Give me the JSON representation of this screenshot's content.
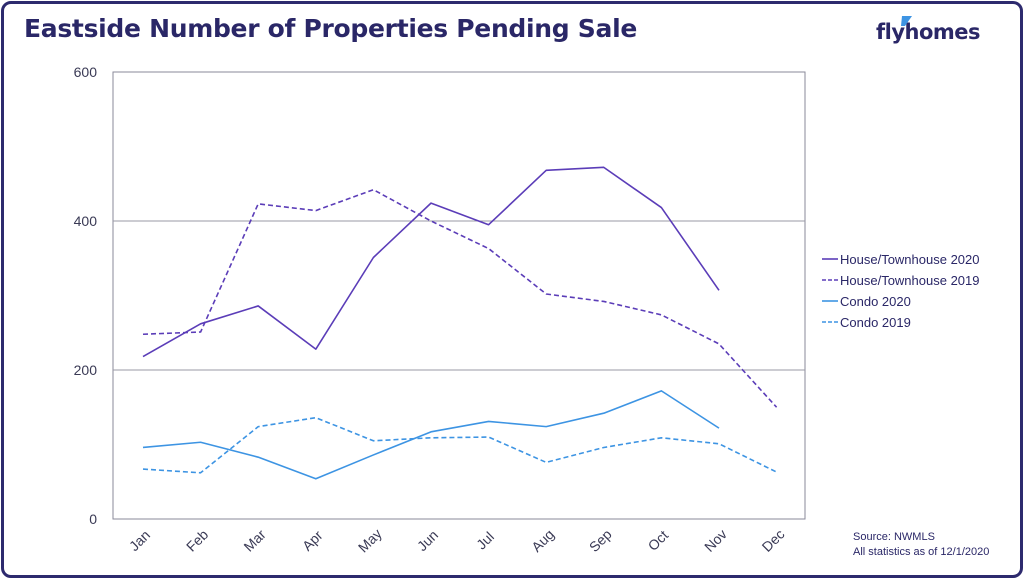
{
  "title": "Eastside Number of Properties Pending Sale",
  "brand": {
    "name": "flyhomes",
    "logo_icon": "flyhomes-logo-icon",
    "color": "#2a2767"
  },
  "source": {
    "line1": "Source: NWMLS",
    "line2": "All statistics as of 12/1/2020"
  },
  "chart_data": {
    "type": "line",
    "title": "Eastside Number of Properties Pending Sale",
    "xlabel": "",
    "ylabel": "",
    "categories": [
      "Jan",
      "Feb",
      "Mar",
      "Apr",
      "May",
      "Jun",
      "Jul",
      "Aug",
      "Sep",
      "Oct",
      "Nov",
      "Dec"
    ],
    "ylim": [
      0,
      600
    ],
    "yticks": [
      0,
      200,
      400,
      600
    ],
    "grid": "horizontal at 200 and 400",
    "legend_position": "right",
    "series": [
      {
        "name": "House/Townhouse 2020",
        "color": "#5b3db8",
        "dashed": false,
        "values": [
          218,
          262,
          286,
          228,
          351,
          424,
          395,
          468,
          472,
          418,
          307,
          null
        ]
      },
      {
        "name": "House/Townhouse 2019",
        "color": "#5b3db8",
        "dashed": true,
        "values": [
          248,
          251,
          423,
          414,
          442,
          400,
          363,
          302,
          292,
          274,
          235,
          150
        ]
      },
      {
        "name": "Condo 2020",
        "color": "#3d94e3",
        "dashed": false,
        "values": [
          96,
          103,
          83,
          54,
          86,
          117,
          131,
          124,
          142,
          172,
          122,
          null
        ]
      },
      {
        "name": "Condo 2019",
        "color": "#3d94e3",
        "dashed": true,
        "values": [
          67,
          62,
          124,
          136,
          105,
          109,
          110,
          76,
          96,
          109,
          101,
          63
        ]
      }
    ]
  }
}
